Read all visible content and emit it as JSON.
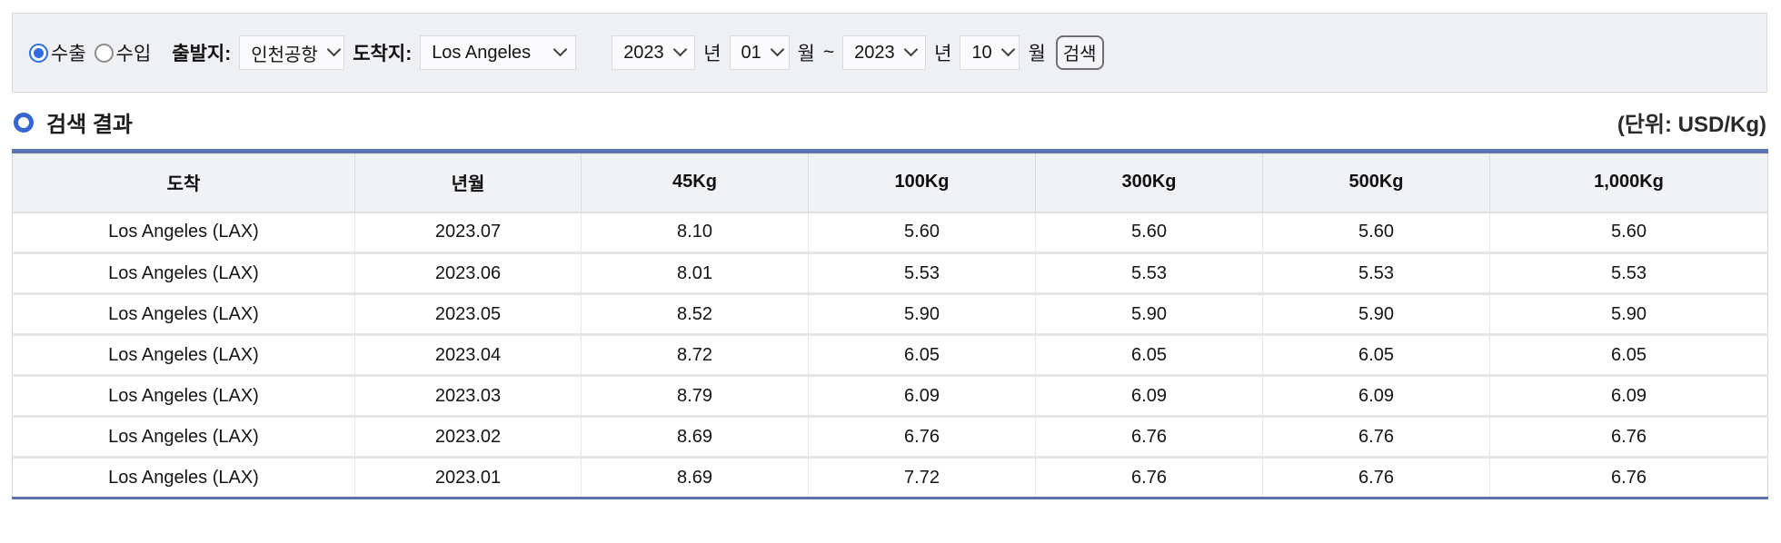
{
  "search_bar": {
    "trade_type": {
      "options": [
        {
          "label": "수출",
          "selected": true
        },
        {
          "label": "수입",
          "selected": false
        }
      ]
    },
    "departure": {
      "label": "출발지:",
      "value": "인천공항"
    },
    "arrival": {
      "label": "도착지:",
      "value": "Los Angeles"
    },
    "period": {
      "start_year": "2023",
      "start_month": "01",
      "end_year": "2023",
      "end_month": "10",
      "year_unit": "년",
      "month_unit": "월",
      "separator": "~"
    },
    "search_button_label": "검색"
  },
  "results": {
    "section_title": "검색 결과",
    "unit_label": "(단위: USD/Kg)",
    "table": {
      "columns": [
        "도착",
        "년월",
        "45Kg",
        "100Kg",
        "300Kg",
        "500Kg",
        "1,000Kg"
      ],
      "rows": [
        [
          "Los Angeles (LAX)",
          "2023.07",
          "8.10",
          "5.60",
          "5.60",
          "5.60",
          "5.60"
        ],
        [
          "Los Angeles (LAX)",
          "2023.06",
          "8.01",
          "5.53",
          "5.53",
          "5.53",
          "5.53"
        ],
        [
          "Los Angeles (LAX)",
          "2023.05",
          "8.52",
          "5.90",
          "5.90",
          "5.90",
          "5.90"
        ],
        [
          "Los Angeles (LAX)",
          "2023.04",
          "8.72",
          "6.05",
          "6.05",
          "6.05",
          "6.05"
        ],
        [
          "Los Angeles (LAX)",
          "2023.03",
          "8.79",
          "6.09",
          "6.09",
          "6.09",
          "6.09"
        ],
        [
          "Los Angeles (LAX)",
          "2023.02",
          "8.69",
          "6.76",
          "6.76",
          "6.76",
          "6.76"
        ],
        [
          "Los Angeles (LAX)",
          "2023.01",
          "8.69",
          "7.72",
          "6.76",
          "6.76",
          "6.76"
        ]
      ]
    }
  },
  "colors": {
    "table_accent_blue": "#5b72b4",
    "radio_selected_blue": "#2e6ee0",
    "section_bullet_blue": "#3465d1",
    "search_bar_bg": "#eef0f4",
    "header_row_bg": "#f1f2f6"
  }
}
